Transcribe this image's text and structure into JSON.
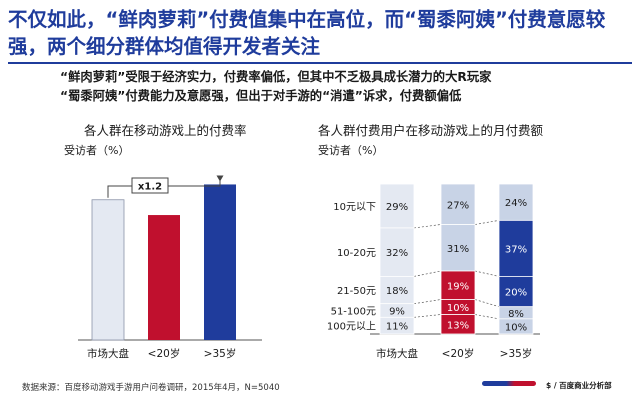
{
  "slide": {
    "title": "不仅如此，“鲜肉萝莉”付费值集中在高位，而“蜀黍阿姨”付费意愿较强，两个细分群体均值得开发者关注",
    "summary_line1": "“鲜肉萝莉”受限于经济实力，付费率偏低，但其中不乏极具成长潜力的大R玩家",
    "summary_line2": "“蜀黍阿姨”付费能力及意愿强，但出于对手游的“消遣”诉求，付费额偏低",
    "footer": "数据来源：百度移动游戏手游用户问卷调研，2015年4月，N=5040",
    "brand": "$ / 百度商业分析部"
  },
  "colors": {
    "title": "#1f3c9c",
    "light": "#e4e9f2",
    "red": "#c0102e",
    "navy": "#1f3c9c",
    "lightblue": "#c8d3e6"
  },
  "chart_data": [
    {
      "type": "bar",
      "title": "各人群在移动游戏上的付费率",
      "ylabel": "受访者（%）",
      "categories": [
        "市场大盘",
        "<20岁",
        ">35岁"
      ],
      "values": [
        55,
        49,
        61
      ],
      "ylim": [
        0,
        100
      ],
      "annotation": "x1.2",
      "colors": [
        "#e4e9f2",
        "#c0102e",
        "#1f3c9c"
      ],
      "grid": false
    },
    {
      "type": "bar",
      "stacked": true,
      "title": "各人群付费用户在移动游戏上的月付费额",
      "ylabel": "受访者（%）",
      "categories": [
        "市场大盘",
        "<20岁",
        ">35岁"
      ],
      "series": [
        {
          "name": "10元以下",
          "values": [
            29,
            27,
            24
          ],
          "labels": [
            "29%",
            "27%",
            "24%"
          ]
        },
        {
          "name": "10-20元",
          "values": [
            32,
            31,
            37
          ],
          "labels": [
            "32%",
            "31%",
            "37%"
          ]
        },
        {
          "name": "21-50元",
          "values": [
            18,
            19,
            20
          ],
          "labels": [
            "18%",
            "19%",
            "20%"
          ]
        },
        {
          "name": "51-100元",
          "values": [
            9,
            10,
            8
          ],
          "labels": [
            "9%",
            "10%",
            "8%"
          ]
        },
        {
          "name": "100元以上",
          "values": [
            11,
            13,
            10
          ],
          "labels": [
            "11%",
            "13%",
            "10%"
          ]
        }
      ],
      "ylim": [
        0,
        100
      ],
      "grid": false
    }
  ]
}
